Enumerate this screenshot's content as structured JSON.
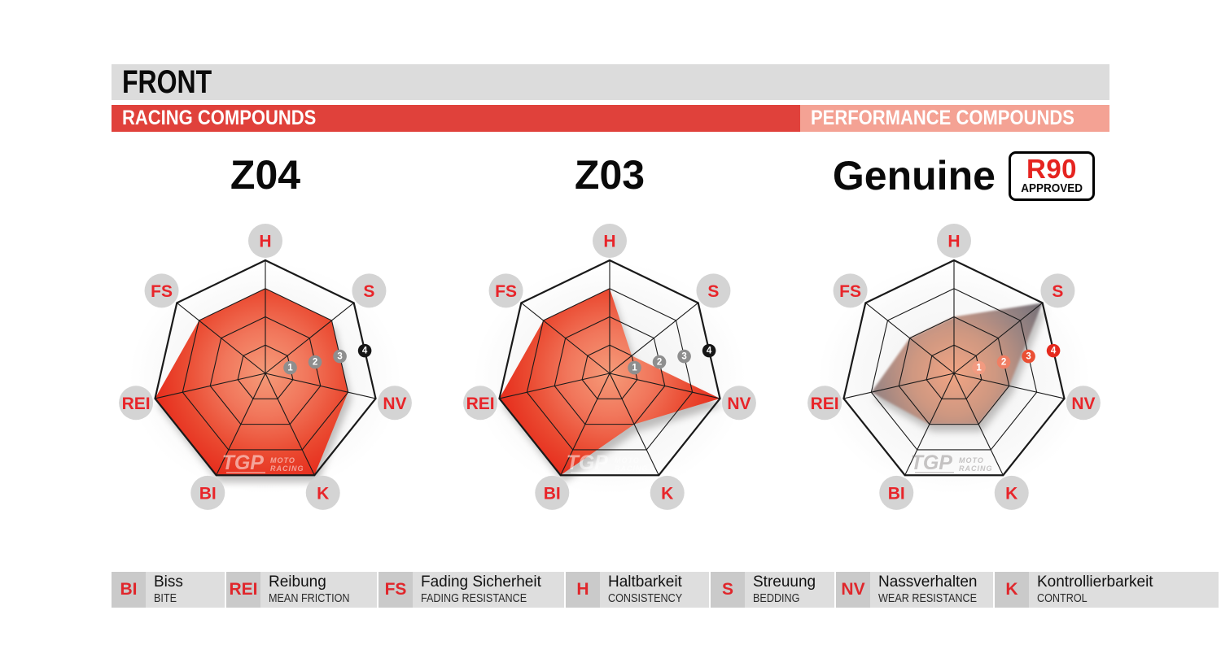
{
  "header": {
    "title": "FRONT"
  },
  "category_bars": {
    "racing": {
      "label": "RACING COMPOUNDS",
      "color": "#E0413B"
    },
    "performance": {
      "label": "PERFORMANCE COMPOUNDS",
      "color": "#F4A294"
    }
  },
  "badge": {
    "line1": "R90",
    "line2": "APPROVED",
    "line1_color": "#E52420"
  },
  "watermark": {
    "brand": "TGP",
    "sub_top": "MOTO",
    "sub_bottom": "RACING"
  },
  "chart_data": {
    "type": "radar",
    "axes_order": [
      "H",
      "S",
      "NV",
      "K",
      "BI",
      "REI",
      "FS"
    ],
    "scale": {
      "min": 0,
      "max": 4,
      "ring_labels": [
        "1",
        "2",
        "3",
        "4"
      ]
    },
    "series": [
      {
        "name": "Z04",
        "group": "RACING COMPOUNDS",
        "values": {
          "H": 3,
          "S": 3,
          "NV": 3,
          "K": 4,
          "BI": 4,
          "REI": 4,
          "FS": 3
        },
        "fill_gradient": [
          "#F59B79",
          "#F1765B",
          "#EA4A31",
          "#E62C1C"
        ],
        "marker_colors": [
          "#8E8E8E",
          "#8E8E8E",
          "#8E8E8E",
          "#161616"
        ]
      },
      {
        "name": "Z03",
        "group": "RACING COMPOUNDS",
        "values": {
          "H": 3,
          "S": 1,
          "NV": 4,
          "K": 2,
          "BI": 4,
          "REI": 4,
          "FS": 3
        },
        "fill_gradient": [
          "#F59B79",
          "#F1765B",
          "#EA4A31",
          "#E62C1C"
        ],
        "marker_colors": [
          "#8E8E8E",
          "#8E8E8E",
          "#8E8E8E",
          "#161616"
        ]
      },
      {
        "name": "Genuine",
        "group": "PERFORMANCE COMPOUNDS",
        "badge": "R90 APPROVED",
        "values": {
          "H": 2,
          "S": 4,
          "NV": 2,
          "K": 2,
          "BI": 2,
          "REI": 3,
          "FS": 2
        },
        "fill_gradient": [
          "#F3A482",
          "#CE9680",
          "#958180",
          "#716C74"
        ],
        "marker_colors": [
          "#F29A80",
          "#F07E63",
          "#EA4F33",
          "#E5291D"
        ]
      }
    ]
  },
  "legend": {
    "items": [
      {
        "abbr": "BI",
        "de": "Biss",
        "en": "BITE"
      },
      {
        "abbr": "REI",
        "de": "Reibung",
        "en": "MEAN FRICTION"
      },
      {
        "abbr": "FS",
        "de": "Fading Sicherheit",
        "en": "FADING RESISTANCE"
      },
      {
        "abbr": "H",
        "de": "Haltbarkeit",
        "en": "CONSISTENCY"
      },
      {
        "abbr": "S",
        "de": "Streuung",
        "en": "BEDDING"
      },
      {
        "abbr": "NV",
        "de": "Nassverhalten",
        "en": "WEAR RESISTANCE"
      },
      {
        "abbr": "K",
        "de": "Kontrollierbarkeit",
        "en": "CONTROL"
      }
    ]
  },
  "ui_colors": {
    "header_bar": "#DCDCDC",
    "axis_label_circle": "#D4D4D4",
    "axis_label_text": "#E8252A",
    "grid_line": "#1A1A1A",
    "legend_abbr_box": "#CACACA",
    "legend_text_box": "#DEDEDE"
  }
}
